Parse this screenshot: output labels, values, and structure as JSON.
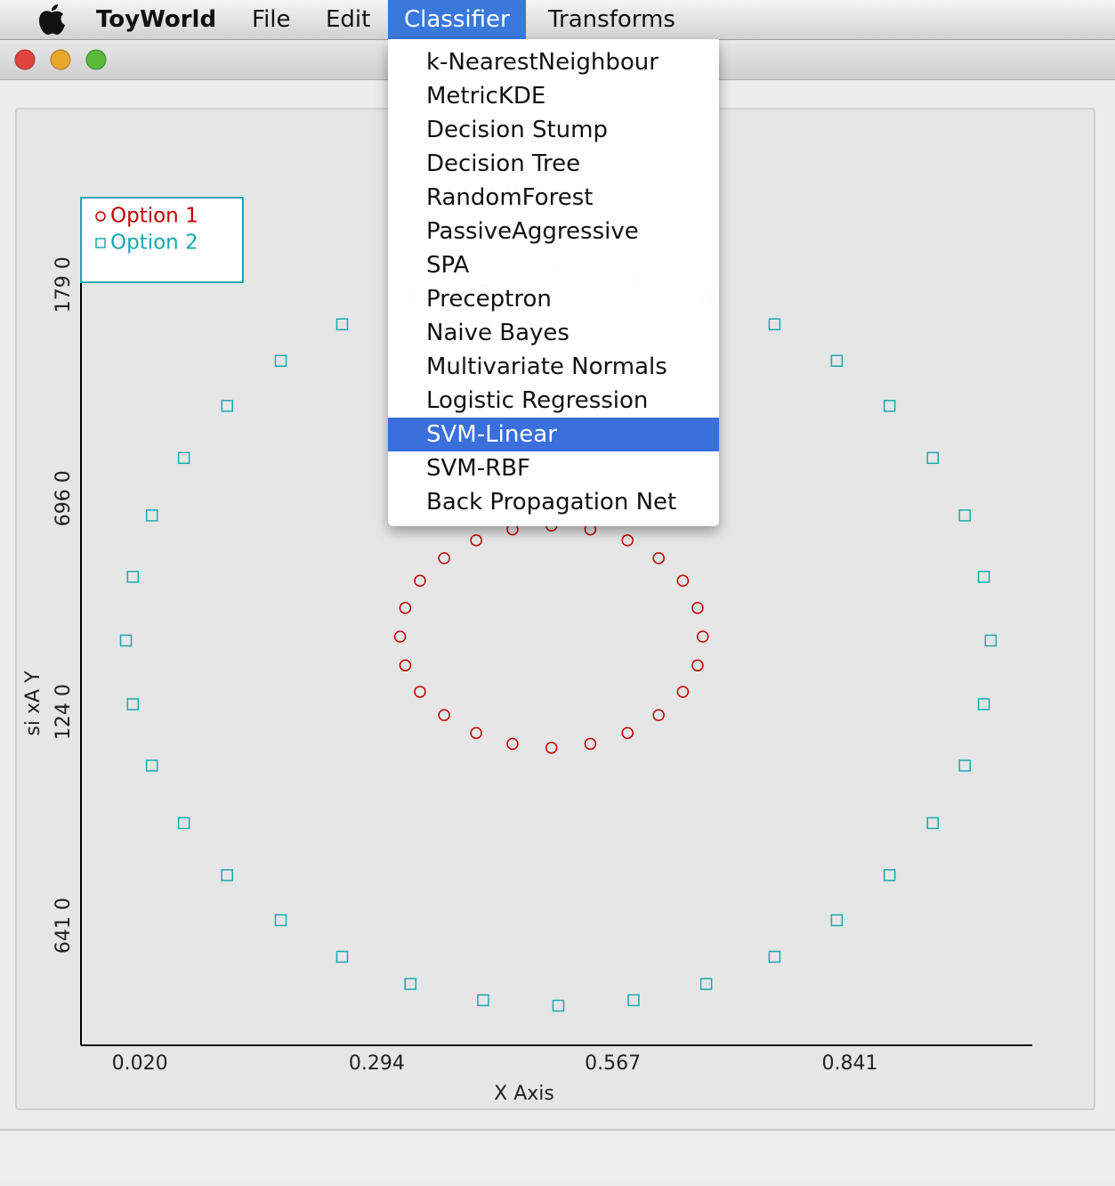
{
  "menu_bar": {
    "items": [
      "ToyWorld",
      "File",
      "Edit",
      "Classifier",
      "Transforms"
    ],
    "active": 3
  },
  "dropdown": {
    "items": [
      "k-NearestNeighbour",
      "MetricKDE",
      "Decision Stump",
      "Decision Tree",
      "RandomForest",
      "PassiveAggressive",
      "SPA",
      "Preceptron",
      "Naive Bayes",
      "Multivariate Normals",
      "Logistic Regression",
      "SVM-Linear",
      "SVM-RBF",
      "Back Propagation Net"
    ],
    "highlighted": 11
  },
  "chart_data": {
    "type": "scatter",
    "x_label": "X Axis",
    "y_label": "si xA Y",
    "legend": "upper left",
    "grid": false,
    "xlim": [
      -0.048,
      1.052
    ],
    "ylim": [
      -0.008,
      1.083
    ],
    "xticks": [
      {
        "value": 0.02,
        "label": "0.020"
      },
      {
        "value": 0.294,
        "label": "0.294"
      },
      {
        "value": 0.567,
        "label": "0.567"
      },
      {
        "value": 0.841,
        "label": "0.841"
      }
    ],
    "yticks": [
      {
        "value": 0.146,
        "label": "641 0"
      },
      {
        "value": 0.421,
        "label": "124 0"
      },
      {
        "value": 0.696,
        "label": "696 0"
      },
      {
        "value": 0.971,
        "label": "179 0"
      }
    ],
    "series": [
      {
        "name": "Option 1",
        "color": "#c00000",
        "marker": "circle",
        "x": [
          0.671,
          0.665,
          0.648,
          0.62,
          0.584,
          0.541,
          0.496,
          0.451,
          0.409,
          0.372,
          0.344,
          0.327,
          0.321,
          0.327,
          0.344,
          0.372,
          0.409,
          0.451,
          0.496,
          0.541,
          0.584,
          0.62,
          0.648,
          0.665
        ],
        "values": [
          0.518,
          0.555,
          0.59,
          0.619,
          0.642,
          0.656,
          0.661,
          0.656,
          0.642,
          0.619,
          0.59,
          0.555,
          0.518,
          0.481,
          0.447,
          0.417,
          0.394,
          0.38,
          0.375,
          0.38,
          0.394,
          0.417,
          0.447,
          0.481
        ]
      },
      {
        "name": "Option 2",
        "color": "#1aa9b0",
        "marker": "square",
        "x": [
          1.004,
          0.996,
          0.974,
          0.937,
          0.887,
          0.826,
          0.754,
          0.675,
          0.591,
          0.504,
          0.417,
          0.333,
          0.254,
          0.183,
          0.121,
          0.071,
          0.034,
          0.012,
          0.004,
          0.012,
          0.034,
          0.071,
          0.121,
          0.183,
          0.254,
          0.333,
          0.417,
          0.504,
          0.591,
          0.675,
          0.754,
          0.826,
          0.887,
          0.937,
          0.974,
          0.996
        ],
        "values": [
          0.513,
          0.595,
          0.674,
          0.748,
          0.815,
          0.873,
          0.92,
          0.955,
          0.976,
          0.983,
          0.976,
          0.955,
          0.92,
          0.873,
          0.815,
          0.748,
          0.674,
          0.595,
          0.513,
          0.431,
          0.352,
          0.278,
          0.211,
          0.153,
          0.106,
          0.071,
          0.05,
          0.043,
          0.05,
          0.071,
          0.106,
          0.153,
          0.211,
          0.278,
          0.352,
          0.431
        ]
      }
    ]
  }
}
